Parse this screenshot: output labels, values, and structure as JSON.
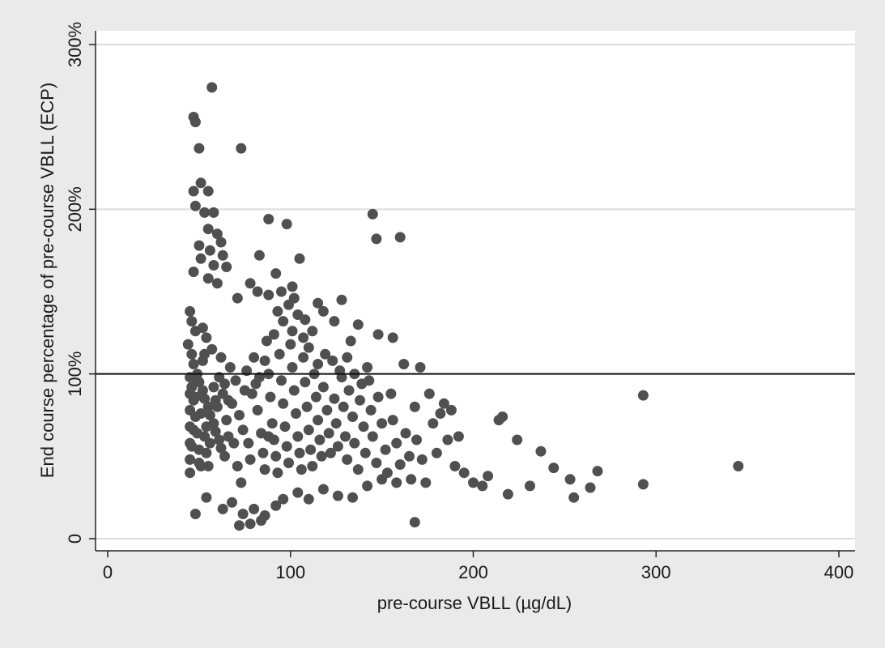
{
  "chart_data": {
    "type": "scatter",
    "xlabel": "pre-course VBLL (µg/dL)",
    "ylabel": "End course percentage of pre-course VBLL (ECP)",
    "xlim": [
      0,
      400
    ],
    "ylim": [
      0,
      300
    ],
    "x_ticks": [
      0,
      100,
      200,
      300,
      400
    ],
    "x_tick_labels": [
      "0",
      "100",
      "200",
      "300",
      "400"
    ],
    "y_ticks": [
      0,
      100,
      200,
      300
    ],
    "y_tick_labels": [
      "0",
      "100%",
      "200%",
      "300%"
    ],
    "grid": "horizontal",
    "reference_line": {
      "y": 100
    },
    "colors": {
      "marker": "#505050",
      "grid": "#dcdcdc",
      "outer_bg": "#eaeaea",
      "plot_bg": "#ffffff",
      "axis": "#222222"
    },
    "series": [
      {
        "points": [
          [
            57,
            274
          ],
          [
            47,
            256
          ],
          [
            48,
            253
          ],
          [
            73,
            237
          ],
          [
            50,
            237
          ],
          [
            51,
            216
          ],
          [
            55,
            211
          ],
          [
            47,
            211
          ],
          [
            48,
            202
          ],
          [
            53,
            198
          ],
          [
            58,
            198
          ],
          [
            88,
            194
          ],
          [
            98,
            191
          ],
          [
            145,
            197
          ],
          [
            147,
            182
          ],
          [
            160,
            183
          ],
          [
            55,
            188
          ],
          [
            60,
            185
          ],
          [
            62,
            180
          ],
          [
            50,
            178
          ],
          [
            56,
            175
          ],
          [
            63,
            172
          ],
          [
            51,
            170
          ],
          [
            58,
            166
          ],
          [
            65,
            165
          ],
          [
            83,
            172
          ],
          [
            105,
            170
          ],
          [
            47,
            162
          ],
          [
            55,
            158
          ],
          [
            60,
            155
          ],
          [
            92,
            161
          ],
          [
            101,
            153
          ],
          [
            78,
            155
          ],
          [
            82,
            150
          ],
          [
            88,
            148
          ],
          [
            95,
            150
          ],
          [
            102,
            146
          ],
          [
            115,
            143
          ],
          [
            128,
            145
          ],
          [
            71,
            146
          ],
          [
            118,
            138
          ],
          [
            108,
            133
          ],
          [
            124,
            132
          ],
          [
            137,
            130
          ],
          [
            45,
            138
          ],
          [
            46,
            132
          ],
          [
            48,
            126
          ],
          [
            52,
            128
          ],
          [
            54,
            122
          ],
          [
            133,
            120
          ],
          [
            148,
            124
          ],
          [
            156,
            122
          ],
          [
            44,
            118
          ],
          [
            46,
            112
          ],
          [
            47,
            106
          ],
          [
            49,
            100
          ],
          [
            50,
            95
          ],
          [
            52,
            90
          ],
          [
            53,
            85
          ],
          [
            55,
            80
          ],
          [
            56,
            75
          ],
          [
            58,
            70
          ],
          [
            59,
            65
          ],
          [
            61,
            60
          ],
          [
            62,
            55
          ],
          [
            64,
            50
          ],
          [
            45,
            98
          ],
          [
            45,
            88
          ],
          [
            45,
            78
          ],
          [
            45,
            68
          ],
          [
            45,
            58
          ],
          [
            45,
            48
          ],
          [
            45,
            40
          ],
          [
            46,
            92
          ],
          [
            47,
            84
          ],
          [
            48,
            74
          ],
          [
            49,
            64
          ],
          [
            50,
            54
          ],
          [
            51,
            44
          ],
          [
            52,
            108
          ],
          [
            53,
            62
          ],
          [
            54,
            52
          ],
          [
            55,
            44
          ],
          [
            57,
            115
          ],
          [
            58,
            92
          ],
          [
            60,
            80
          ],
          [
            62,
            110
          ],
          [
            63,
            88
          ],
          [
            65,
            72
          ],
          [
            66,
            62
          ],
          [
            67,
            104
          ],
          [
            68,
            82
          ],
          [
            70,
            96
          ],
          [
            72,
            75
          ],
          [
            74,
            66
          ],
          [
            75,
            90
          ],
          [
            77,
            58
          ],
          [
            78,
            48
          ],
          [
            80,
            110
          ],
          [
            81,
            94
          ],
          [
            82,
            78
          ],
          [
            84,
            64
          ],
          [
            85,
            52
          ],
          [
            86,
            42
          ],
          [
            87,
            120
          ],
          [
            88,
            100
          ],
          [
            89,
            86
          ],
          [
            90,
            70
          ],
          [
            91,
            60
          ],
          [
            92,
            50
          ],
          [
            93,
            40
          ],
          [
            94,
            112
          ],
          [
            95,
            96
          ],
          [
            96,
            82
          ],
          [
            97,
            68
          ],
          [
            98,
            56
          ],
          [
            99,
            46
          ],
          [
            100,
            118
          ],
          [
            101,
            104
          ],
          [
            102,
            90
          ],
          [
            103,
            76
          ],
          [
            104,
            62
          ],
          [
            105,
            52
          ],
          [
            106,
            42
          ],
          [
            107,
            110
          ],
          [
            108,
            95
          ],
          [
            109,
            80
          ],
          [
            110,
            66
          ],
          [
            111,
            54
          ],
          [
            112,
            44
          ],
          [
            113,
            100
          ],
          [
            114,
            86
          ],
          [
            115,
            72
          ],
          [
            116,
            60
          ],
          [
            117,
            50
          ],
          [
            118,
            92
          ],
          [
            120,
            78
          ],
          [
            121,
            64
          ],
          [
            122,
            52
          ],
          [
            124,
            85
          ],
          [
            125,
            70
          ],
          [
            126,
            56
          ],
          [
            128,
            98
          ],
          [
            129,
            80
          ],
          [
            130,
            62
          ],
          [
            131,
            48
          ],
          [
            132,
            90
          ],
          [
            134,
            74
          ],
          [
            135,
            58
          ],
          [
            137,
            42
          ],
          [
            138,
            84
          ],
          [
            140,
            68
          ],
          [
            141,
            52
          ],
          [
            143,
            96
          ],
          [
            144,
            78
          ],
          [
            145,
            62
          ],
          [
            147,
            46
          ],
          [
            148,
            86
          ],
          [
            150,
            70
          ],
          [
            152,
            54
          ],
          [
            153,
            40
          ],
          [
            155,
            88
          ],
          [
            156,
            72
          ],
          [
            158,
            58
          ],
          [
            160,
            45
          ],
          [
            162,
            106
          ],
          [
            163,
            64
          ],
          [
            165,
            50
          ],
          [
            166,
            36
          ],
          [
            168,
            80
          ],
          [
            169,
            60
          ],
          [
            171,
            104
          ],
          [
            172,
            48
          ],
          [
            174,
            34
          ],
          [
            176,
            88
          ],
          [
            178,
            70
          ],
          [
            180,
            52
          ],
          [
            182,
            76
          ],
          [
            184,
            82
          ],
          [
            186,
            60
          ],
          [
            188,
            78
          ],
          [
            190,
            44
          ],
          [
            192,
            62
          ],
          [
            195,
            40
          ],
          [
            200,
            34
          ],
          [
            205,
            32
          ],
          [
            208,
            38
          ],
          [
            214,
            72
          ],
          [
            216,
            74
          ],
          [
            219,
            27
          ],
          [
            224,
            60
          ],
          [
            231,
            32
          ],
          [
            237,
            53
          ],
          [
            244,
            43
          ],
          [
            253,
            36
          ],
          [
            255,
            25
          ],
          [
            264,
            31
          ],
          [
            268,
            41
          ],
          [
            293,
            87
          ],
          [
            293,
            33
          ],
          [
            345,
            44
          ],
          [
            168,
            10
          ],
          [
            72,
            8
          ],
          [
            78,
            9
          ],
          [
            84,
            11
          ],
          [
            80,
            18
          ],
          [
            86,
            14
          ],
          [
            92,
            20
          ],
          [
            48,
            15
          ],
          [
            54,
            25
          ],
          [
            63,
            18
          ],
          [
            68,
            22
          ],
          [
            74,
            15
          ],
          [
            96,
            24
          ],
          [
            104,
            28
          ],
          [
            110,
            24
          ],
          [
            118,
            30
          ],
          [
            126,
            26
          ],
          [
            134,
            25
          ],
          [
            142,
            32
          ],
          [
            150,
            36
          ],
          [
            158,
            34
          ],
          [
            46,
            56
          ],
          [
            47,
            66
          ],
          [
            48,
            86
          ],
          [
            49,
            96
          ],
          [
            50,
            46
          ],
          [
            51,
            76
          ],
          [
            53,
            112
          ],
          [
            54,
            68
          ],
          [
            56,
            58
          ],
          [
            59,
            84
          ],
          [
            61,
            98
          ],
          [
            64,
            94
          ],
          [
            66,
            84
          ],
          [
            69,
            58
          ],
          [
            71,
            44
          ],
          [
            73,
            34
          ],
          [
            76,
            102
          ],
          [
            79,
            88
          ],
          [
            83,
            98
          ],
          [
            86,
            108
          ],
          [
            88,
            62
          ],
          [
            91,
            124
          ],
          [
            93,
            138
          ],
          [
            96,
            132
          ],
          [
            99,
            142
          ],
          [
            101,
            126
          ],
          [
            104,
            136
          ],
          [
            107,
            122
          ],
          [
            110,
            116
          ],
          [
            112,
            126
          ],
          [
            115,
            106
          ],
          [
            119,
            112
          ],
          [
            123,
            108
          ],
          [
            127,
            102
          ],
          [
            131,
            110
          ],
          [
            135,
            100
          ],
          [
            139,
            94
          ],
          [
            142,
            104
          ]
        ]
      }
    ]
  }
}
